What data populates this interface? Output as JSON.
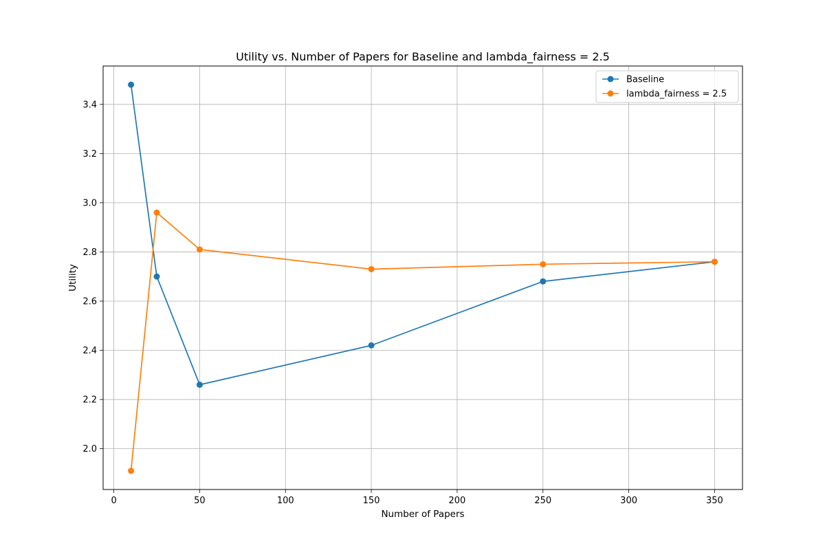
{
  "chart_data": {
    "type": "line",
    "title": "Utility vs. Number of Papers for Baseline and lambda_fairness = 2.5",
    "xlabel": "Number of Papers",
    "ylabel": "Utility",
    "xlim": [
      -6.25,
      366.25
    ],
    "ylim": [
      1.834,
      3.556
    ],
    "xticks": [
      0,
      50,
      100,
      150,
      200,
      250,
      300,
      350
    ],
    "xtick_labels": [
      "0",
      "50",
      "100",
      "150",
      "200",
      "250",
      "300",
      "350"
    ],
    "yticks": [
      2.0,
      2.2,
      2.4,
      2.6,
      2.8,
      3.0,
      3.2,
      3.4
    ],
    "ytick_labels": [
      "2.0",
      "2.2",
      "2.4",
      "2.6",
      "2.8",
      "3.0",
      "3.2",
      "3.4"
    ],
    "grid": true,
    "legend_position": "top-right",
    "x": [
      10,
      25,
      50,
      150,
      250,
      350
    ],
    "series": [
      {
        "name": "Baseline",
        "color": "#1f77b4",
        "marker": "circle",
        "values": [
          3.48,
          2.7,
          2.26,
          2.42,
          2.68,
          2.76
        ]
      },
      {
        "name": "lambda_fairness = 2.5",
        "color": "#ff7f0e",
        "marker": "circle",
        "values": [
          1.91,
          2.96,
          2.81,
          2.73,
          2.75,
          2.76
        ]
      }
    ]
  }
}
